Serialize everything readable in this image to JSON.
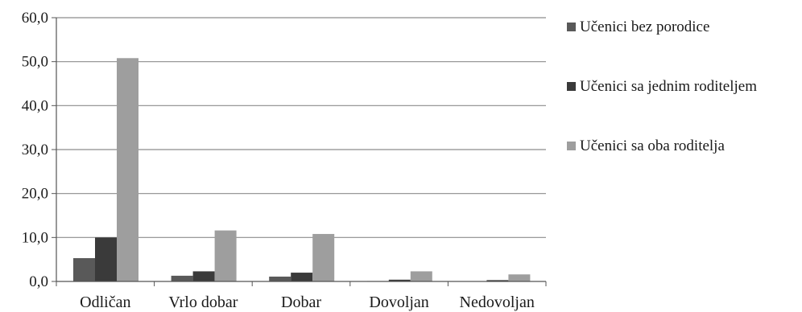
{
  "chart_data": {
    "type": "bar",
    "title": "",
    "xlabel": "",
    "ylabel": "",
    "categories": [
      "Odličan",
      "Vrlo dobar",
      "Dobar",
      "Dovoljan",
      "Nedovoljan"
    ],
    "series": [
      {
        "name": "Učenici bez porodice",
        "color": "#595959",
        "values": [
          5.3,
          1.3,
          1.1,
          0.1,
          0.0
        ]
      },
      {
        "name": "Učenici sa jednim roditeljem",
        "color": "#3a3a3a",
        "values": [
          10.0,
          2.3,
          2.0,
          0.4,
          0.3
        ]
      },
      {
        "name": "Učenici sa oba roditelja",
        "color": "#9e9e9e",
        "values": [
          50.8,
          11.6,
          10.8,
          2.3,
          1.6
        ]
      }
    ],
    "ylim": [
      0,
      60
    ],
    "yticks": [
      "0,0",
      "10,0",
      "20,0",
      "30,0",
      "40,0",
      "50,0",
      "60,0"
    ],
    "grid": true,
    "legend_position": "right"
  }
}
